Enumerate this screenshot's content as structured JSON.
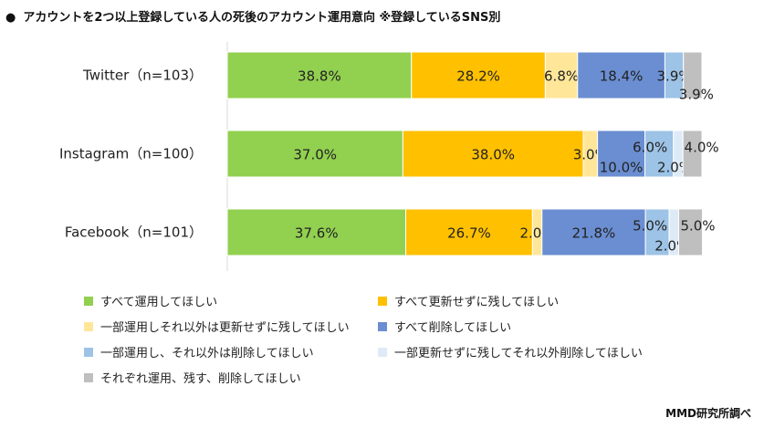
{
  "title_bullet": "●",
  "title": "アカウントを2つ以上登録している人の死後のアカウント運用意向 ※登録しているSNS別",
  "source": "MMD研究所調べ",
  "chart_data": {
    "type": "bar",
    "orientation": "horizontal",
    "stacked": "percent",
    "categories": [
      "Twitter（n=103）",
      "Instagram（n=100）",
      "Facebook（n=101）"
    ],
    "xlim": [
      0,
      100
    ],
    "legend_position": "bottom",
    "series": [
      {
        "name": "すべて運用してほしい",
        "color": "#92d050",
        "values": [
          38.8,
          37.0,
          37.6
        ],
        "labels": [
          "38.8%",
          "37.0%",
          "37.6%"
        ]
      },
      {
        "name": "すべて更新せずに残してほしい",
        "color": "#ffc000",
        "values": [
          28.2,
          38.0,
          26.7
        ],
        "labels": [
          "28.2%",
          "38.0%",
          "26.7%"
        ]
      },
      {
        "name": "一部運用しそれ以外は更新せずに残してほしい",
        "color": "#ffe699",
        "values": [
          6.8,
          3.0,
          2.0
        ],
        "labels": [
          "6.8%",
          "3.0%",
          "2.0%"
        ]
      },
      {
        "name": "すべて削除してほしい",
        "color": "#6a8ed1",
        "values": [
          18.4,
          10.0,
          21.8
        ],
        "labels": [
          "18.4%",
          "10.0%",
          "21.8%"
        ]
      },
      {
        "name": "一部運用し、それ以外は削除してほしい",
        "color": "#9dc3e6",
        "values": [
          3.9,
          6.0,
          5.0
        ],
        "labels": [
          "3.9%",
          "6.0%",
          "5.0%"
        ]
      },
      {
        "name": "一部更新せずに残してそれ以外削除してほしい",
        "color": "#deebf7",
        "values": [
          0.0,
          2.0,
          2.0
        ],
        "labels": [
          "",
          "2.0%",
          "2.0%"
        ]
      },
      {
        "name": "それぞれ運用、残す、削除してほしい",
        "color": "#bfbfbf",
        "values": [
          3.9,
          4.0,
          5.0
        ],
        "labels": [
          "3.9%",
          "4.0%",
          "5.0%"
        ]
      }
    ]
  }
}
